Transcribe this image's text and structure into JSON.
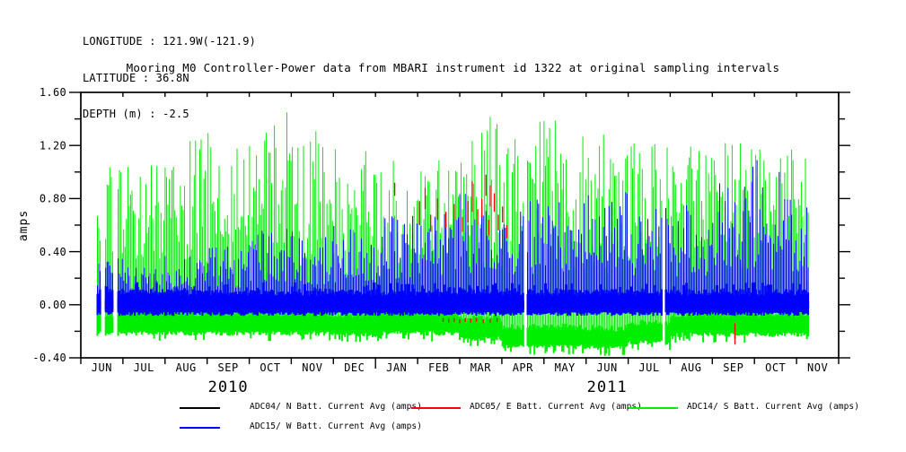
{
  "header": {
    "longitude": "LONGITUDE : 121.9W(-121.9)",
    "latitude": "LATITUDE : 36.8N",
    "depth": "DEPTH (m) : -2.5"
  },
  "title": "Mooring M0 Controller-Power data from MBARI instrument id 1322 at original sampling intervals",
  "chart_data": {
    "type": "line",
    "ylabel": "amps",
    "xlabel": "",
    "grid": false,
    "legend_position": "bottom",
    "ylim": [
      -0.4,
      1.6
    ],
    "yticks": [
      {
        "value": -0.4,
        "label": "-0.40"
      },
      {
        "value": 0.0,
        "label": "0.00"
      },
      {
        "value": 0.4,
        "label": "0.40"
      },
      {
        "value": 0.8,
        "label": "0.80"
      },
      {
        "value": 1.2,
        "label": "1.20"
      },
      {
        "value": 1.6,
        "label": "1.60"
      }
    ],
    "yticks_minor": [
      -0.2,
      0.2,
      0.6,
      1.0,
      1.4
    ],
    "x_months": [
      "JUN",
      "JUL",
      "AUG",
      "SEP",
      "OCT",
      "NOV",
      "DEC",
      "JAN",
      "FEB",
      "MAR",
      "APR",
      "MAY",
      "JUN",
      "JUL",
      "AUG",
      "SEP",
      "OCT",
      "NOV"
    ],
    "years": [
      {
        "label": "2010",
        "boundary_index": 3.5
      },
      {
        "label": "2011",
        "boundary_index": 12.5
      }
    ],
    "days_total": 548,
    "data_day_range": [
      12,
      526
    ],
    "gaps_days": [
      [
        15,
        17
      ],
      [
        24,
        26
      ],
      [
        321,
        322
      ],
      [
        421,
        422
      ]
    ],
    "series": [
      {
        "id": "N",
        "label": "ADC04/ N Batt. Current Avg (amps)",
        "color": "#000000",
        "role": "baseline-band",
        "band": [
          -0.035,
          0.035
        ]
      },
      {
        "id": "E",
        "label": "ADC05/ E Batt. Current Avg (amps)",
        "color": "#ff0000",
        "role": "mostly-occluded-events",
        "events": [
          {
            "day": 227,
            "from": 0.82,
            "to": 0.92
          },
          {
            "day": 245,
            "from": 0.6,
            "to": 0.78
          },
          {
            "day": 249,
            "from": 0.72,
            "to": 0.88
          },
          {
            "day": 253,
            "from": 0.55,
            "to": 0.68
          },
          {
            "day": 258,
            "from": 0.64,
            "to": 0.8
          },
          {
            "day": 264,
            "from": 0.58,
            "to": 0.7
          },
          {
            "day": 270,
            "from": 0.64,
            "to": 0.76
          },
          {
            "day": 276,
            "from": 0.55,
            "to": 0.66
          },
          {
            "day": 280,
            "from": 0.62,
            "to": 0.78
          },
          {
            "day": 283,
            "from": 0.7,
            "to": 0.93
          },
          {
            "day": 287,
            "from": 0.6,
            "to": 0.72
          },
          {
            "day": 290,
            "from": 0.66,
            "to": 0.8
          },
          {
            "day": 293,
            "from": 0.82,
            "to": 0.98
          },
          {
            "day": 295,
            "from": 0.52,
            "to": 0.64
          },
          {
            "day": 296,
            "from": 0.74,
            "to": 0.9
          },
          {
            "day": 299,
            "from": 0.7,
            "to": 0.84
          },
          {
            "day": 302,
            "from": 0.56,
            "to": 0.68
          },
          {
            "day": 305,
            "from": 0.62,
            "to": 0.74
          },
          {
            "day": 308,
            "from": 0.5,
            "to": 0.6
          },
          {
            "day": 262,
            "from": -0.13,
            "to": -0.1
          },
          {
            "day": 266,
            "from": -0.135,
            "to": -0.105
          },
          {
            "day": 270,
            "from": -0.13,
            "to": -0.1
          },
          {
            "day": 274,
            "from": -0.14,
            "to": -0.11
          },
          {
            "day": 278,
            "from": -0.13,
            "to": -0.1
          },
          {
            "day": 282,
            "from": -0.135,
            "to": -0.105
          },
          {
            "day": 286,
            "from": -0.13,
            "to": -0.1
          },
          {
            "day": 291,
            "from": -0.14,
            "to": -0.11
          },
          {
            "day": 296,
            "from": -0.135,
            "to": -0.105
          },
          {
            "day": 301,
            "from": -0.13,
            "to": -0.1
          },
          {
            "day": 473,
            "from": -0.3,
            "to": -0.14
          }
        ]
      },
      {
        "id": "S",
        "label": "ADC14/ S Batt. Current Avg (amps)",
        "color": "#00ee00",
        "role": "daily-spikes",
        "monthly_spike_max": [
          1.18,
          1.05,
          1.25,
          1.3,
          1.42,
          1.32,
          1.2,
          1.12,
          1.1,
          1.42,
          1.44,
          1.42,
          1.3,
          1.22,
          1.2,
          1.25,
          1.18,
          1.1
        ],
        "monthly_baseline": [
          -0.15,
          -0.15,
          -0.15,
          -0.15,
          -0.15,
          -0.15,
          -0.16,
          -0.15,
          -0.15,
          -0.19,
          -0.25,
          -0.25,
          -0.26,
          -0.22,
          -0.16,
          -0.16,
          -0.16,
          -0.16
        ],
        "events": [
          {
            "day": 149,
            "from": -0.15,
            "to": 1.45
          },
          {
            "day": 524,
            "from": -0.16,
            "to": 1.1
          }
        ]
      },
      {
        "id": "W",
        "label": "ADC15/ W Batt. Current Avg (amps)",
        "color": "#0000ff",
        "role": "daily-spikes",
        "monthly_spike_max": [
          0.35,
          0.3,
          0.38,
          0.45,
          0.6,
          0.55,
          0.6,
          0.7,
          0.72,
          0.85,
          0.82,
          0.85,
          0.85,
          0.78,
          0.75,
          0.95,
          0.9,
          0.85
        ],
        "monthly_baseline": [
          -0.05,
          -0.05,
          -0.05,
          -0.05,
          -0.05,
          -0.05,
          -0.05,
          -0.05,
          -0.05,
          -0.05,
          -0.05,
          -0.05,
          -0.05,
          -0.05,
          -0.05,
          -0.05,
          -0.05,
          -0.05
        ],
        "band": [
          -0.055,
          0.075
        ],
        "events": [
          {
            "day": 486,
            "from": -0.05,
            "to": 1.04
          },
          {
            "day": 489,
            "from": -0.05,
            "to": 1.09
          },
          {
            "day": 505,
            "from": -0.05,
            "to": 1.0
          }
        ]
      }
    ]
  }
}
